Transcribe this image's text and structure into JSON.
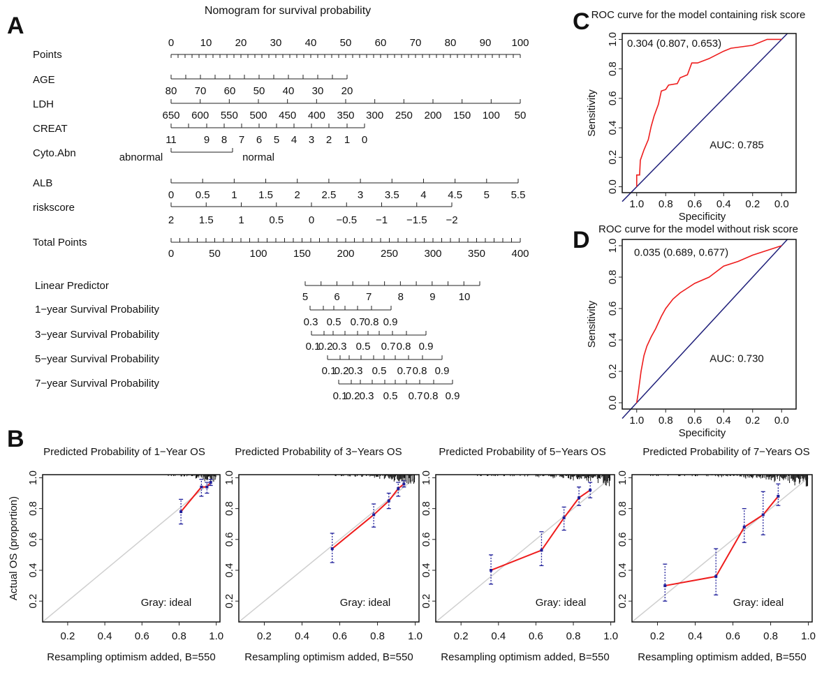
{
  "panel_letters": [
    "A",
    "B",
    "C",
    "D"
  ],
  "colors": {
    "curve": "#ee1c1c",
    "diagonal": "#1f1f7a",
    "ideal": "#cfcfcf",
    "errorbar": "#1f1f9a",
    "text": "#111111"
  },
  "chart_data": [
    {
      "type": "nomogram",
      "title": "Nomogram for survival probability",
      "rows": [
        {
          "label": "Points",
          "ticks": [
            "0",
            "10",
            "20",
            "30",
            "40",
            "50",
            "60",
            "70",
            "80",
            "90",
            "100"
          ]
        },
        {
          "label": "AGE",
          "ticks": [
            "80",
            "70",
            "60",
            "50",
            "40",
            "30",
            "20"
          ]
        },
        {
          "label": "LDH",
          "ticks": [
            "650",
            "600",
            "550",
            "500",
            "450",
            "400",
            "350",
            "300",
            "250",
            "200",
            "150",
            "100",
            "50"
          ]
        },
        {
          "label": "CREAT",
          "ticks": [
            "11",
            "9",
            "8",
            "7",
            "6",
            "5",
            "4",
            "3",
            "2",
            "1",
            "0"
          ]
        },
        {
          "label": "Cyto.Abn",
          "ticks": [
            "abnormal",
            "normal"
          ]
        },
        {
          "label": "ALB",
          "ticks": [
            "0",
            "0.5",
            "1",
            "1.5",
            "2",
            "2.5",
            "3",
            "3.5",
            "4",
            "4.5",
            "5",
            "5.5"
          ]
        },
        {
          "label": "riskscore",
          "ticks": [
            "2",
            "1.5",
            "1",
            "0.5",
            "0",
            "−0.5",
            "−1",
            "−1.5",
            "−2"
          ]
        },
        {
          "label": "Total Points",
          "ticks": [
            "0",
            "50",
            "100",
            "150",
            "200",
            "250",
            "300",
            "350",
            "400"
          ]
        },
        {
          "label": "Linear Predictor",
          "ticks": [
            "5",
            "6",
            "7",
            "8",
            "9",
            "10"
          ]
        },
        {
          "label": "1−year Survival Probability",
          "ticks": [
            "0.3",
            "0.5",
            "0.7",
            "0.8",
            "0.9"
          ]
        },
        {
          "label": "3−year Survival Probability",
          "ticks": [
            "0.1",
            "0.2",
            "0.3",
            "0.5",
            "0.7",
            "0.8",
            "0.9"
          ]
        },
        {
          "label": "5−year Survival Probability",
          "ticks": [
            "0.1",
            "0.2",
            "0.3",
            "0.5",
            "0.7",
            "0.8",
            "0.9"
          ]
        },
        {
          "label": "7−year Survival Probability",
          "ticks": [
            "0.1",
            "0.2",
            "0.3",
            "0.5",
            "0.7",
            "0.8",
            "0.9"
          ]
        }
      ]
    },
    {
      "type": "line",
      "title": "Predicted Probability of 1−Year OS",
      "xlabel": "Resampling optimism added, B=550",
      "ylabel": "Actual  OS (proportion)",
      "annotation": "Gray: ideal",
      "xlim": [
        0.065,
        1.02
      ],
      "ylim": [
        0.065,
        1.02
      ],
      "xticks": [
        "0.2",
        "0.4",
        "0.6",
        "0.8",
        "1.0"
      ],
      "yticks": [
        "0.2",
        "0.4",
        "0.6",
        "0.8",
        "1.0"
      ],
      "points": [
        {
          "x": 0.81,
          "y": 0.78,
          "lo": 0.7,
          "hi": 0.86
        },
        {
          "x": 0.92,
          "y": 0.94,
          "lo": 0.88,
          "hi": 0.99
        },
        {
          "x": 0.95,
          "y": 0.94,
          "lo": 0.9,
          "hi": 0.97
        },
        {
          "x": 0.97,
          "y": 0.97,
          "lo": 0.95,
          "hi": 0.99
        }
      ]
    },
    {
      "type": "line",
      "title": "Predicted Probability of 3−Years OS",
      "xlabel": "Resampling optimism added, B=550",
      "annotation": "Gray: ideal",
      "xlim": [
        0.065,
        1.02
      ],
      "ylim": [
        0.065,
        1.02
      ],
      "xticks": [
        "0.2",
        "0.4",
        "0.6",
        "0.8",
        "1.0"
      ],
      "yticks": [
        "0.2",
        "0.4",
        "0.6",
        "0.8",
        "1.0"
      ],
      "points": [
        {
          "x": 0.56,
          "y": 0.54,
          "lo": 0.45,
          "hi": 0.64
        },
        {
          "x": 0.78,
          "y": 0.76,
          "lo": 0.68,
          "hi": 0.83
        },
        {
          "x": 0.86,
          "y": 0.85,
          "lo": 0.8,
          "hi": 0.9
        },
        {
          "x": 0.91,
          "y": 0.93,
          "lo": 0.88,
          "hi": 0.97
        },
        {
          "x": 0.94,
          "y": 0.96,
          "lo": 0.94,
          "hi": 0.98
        }
      ]
    },
    {
      "type": "line",
      "title": "Predicted Probability of 5−Years OS",
      "xlabel": "Resampling optimism added, B=550",
      "annotation": "Gray: ideal",
      "xlim": [
        0.065,
        1.02
      ],
      "ylim": [
        0.065,
        1.02
      ],
      "xticks": [
        "0.2",
        "0.4",
        "0.6",
        "0.8",
        "1.0"
      ],
      "yticks": [
        "0.2",
        "0.4",
        "0.6",
        "0.8",
        "1.0"
      ],
      "points": [
        {
          "x": 0.36,
          "y": 0.4,
          "lo": 0.31,
          "hi": 0.5
        },
        {
          "x": 0.63,
          "y": 0.53,
          "lo": 0.43,
          "hi": 0.65
        },
        {
          "x": 0.75,
          "y": 0.74,
          "lo": 0.66,
          "hi": 0.81
        },
        {
          "x": 0.83,
          "y": 0.87,
          "lo": 0.82,
          "hi": 0.94
        },
        {
          "x": 0.89,
          "y": 0.92,
          "lo": 0.87,
          "hi": 0.97
        }
      ]
    },
    {
      "type": "line",
      "title": "Predicted Probability of 7−Years OS",
      "xlabel": "Resampling optimism added, B=550",
      "annotation": "Gray: ideal",
      "xlim": [
        0.065,
        1.02
      ],
      "ylim": [
        0.065,
        1.02
      ],
      "xticks": [
        "0.2",
        "0.4",
        "0.6",
        "0.8",
        "1.0"
      ],
      "yticks": [
        "0.2",
        "0.4",
        "0.6",
        "0.8",
        "1.0"
      ],
      "points": [
        {
          "x": 0.24,
          "y": 0.3,
          "lo": 0.2,
          "hi": 0.44
        },
        {
          "x": 0.51,
          "y": 0.36,
          "lo": 0.24,
          "hi": 0.54
        },
        {
          "x": 0.66,
          "y": 0.68,
          "lo": 0.58,
          "hi": 0.8
        },
        {
          "x": 0.76,
          "y": 0.76,
          "lo": 0.63,
          "hi": 0.91
        },
        {
          "x": 0.84,
          "y": 0.88,
          "lo": 0.82,
          "hi": 0.96
        }
      ]
    },
    {
      "type": "line",
      "title": "ROC curve for the model containing risk score",
      "xlabel": "Specificity",
      "ylabel": "Sensitivity",
      "xlim": [
        1.1,
        -0.1
      ],
      "ylim": [
        -0.04,
        1.04
      ],
      "xticks": [
        "1.0",
        "0.8",
        "0.6",
        "0.4",
        "0.2",
        "0.0"
      ],
      "yticks": [
        "0.0",
        "0.2",
        "0.4",
        "0.6",
        "0.8",
        "1.0"
      ],
      "threshold_label": "0.304 (0.807, 0.653)",
      "auc_label": "AUC: 0.785",
      "curve": [
        [
          1,
          0
        ],
        [
          1,
          0.08
        ],
        [
          0.98,
          0.08
        ],
        [
          0.975,
          0.18
        ],
        [
          0.95,
          0.25
        ],
        [
          0.92,
          0.32
        ],
        [
          0.9,
          0.41
        ],
        [
          0.88,
          0.48
        ],
        [
          0.85,
          0.56
        ],
        [
          0.83,
          0.65
        ],
        [
          0.8,
          0.66
        ],
        [
          0.78,
          0.69
        ],
        [
          0.72,
          0.7
        ],
        [
          0.7,
          0.74
        ],
        [
          0.65,
          0.76
        ],
        [
          0.62,
          0.84
        ],
        [
          0.58,
          0.84
        ],
        [
          0.5,
          0.87
        ],
        [
          0.4,
          0.92
        ],
        [
          0.35,
          0.94
        ],
        [
          0.2,
          0.96
        ],
        [
          0.1,
          1.0
        ],
        [
          0,
          1.0
        ]
      ]
    },
    {
      "type": "line",
      "title": "ROC curve for the model without risk score",
      "xlabel": "Specificity",
      "ylabel": "Sensitivity",
      "xlim": [
        1.1,
        -0.1
      ],
      "ylim": [
        -0.04,
        1.04
      ],
      "xticks": [
        "1.0",
        "0.8",
        "0.6",
        "0.4",
        "0.2",
        "0.0"
      ],
      "yticks": [
        "0.0",
        "0.2",
        "0.4",
        "0.6",
        "0.8",
        "1.0"
      ],
      "threshold_label": "0.035 (0.689, 0.677)",
      "auc_label": "AUC: 0.730",
      "curve": [
        [
          1,
          0
        ],
        [
          0.99,
          0.06
        ],
        [
          0.97,
          0.2
        ],
        [
          0.95,
          0.3
        ],
        [
          0.93,
          0.36
        ],
        [
          0.9,
          0.42
        ],
        [
          0.87,
          0.47
        ],
        [
          0.83,
          0.55
        ],
        [
          0.8,
          0.6
        ],
        [
          0.75,
          0.66
        ],
        [
          0.7,
          0.7
        ],
        [
          0.65,
          0.73
        ],
        [
          0.6,
          0.76
        ],
        [
          0.5,
          0.8
        ],
        [
          0.4,
          0.87
        ],
        [
          0.3,
          0.9
        ],
        [
          0.2,
          0.94
        ],
        [
          0.1,
          0.97
        ],
        [
          0,
          1
        ]
      ]
    }
  ]
}
